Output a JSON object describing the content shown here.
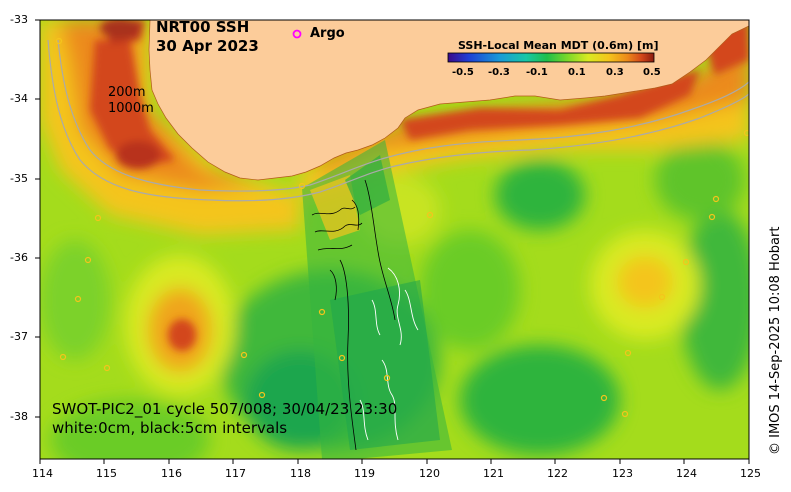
{
  "title": {
    "product": "NRT00 SSH",
    "date": "30 Apr 2023"
  },
  "legend": {
    "argo_symbol": "o",
    "argo_label": "Argo"
  },
  "colorbar": {
    "title": "SSH-Local Mean MDT (0.6m) [m]",
    "ticks": [
      "-0.5",
      "-0.3",
      "-0.1",
      "0.1",
      "0.3",
      "0.5"
    ],
    "colors": [
      "#3a0a8a",
      "#1f3fd6",
      "#1a9ad8",
      "#18c7a6",
      "#1fbf4a",
      "#7bd82a",
      "#d9ea22",
      "#f4c51c",
      "#ec8a1a",
      "#d3461a",
      "#8a1c10"
    ]
  },
  "depth_contours": {
    "label_200": "200m",
    "label_1000": "1000m"
  },
  "axes": {
    "x_ticks": [
      "114",
      "115",
      "116",
      "117",
      "118",
      "119",
      "120",
      "121",
      "122",
      "123",
      "124",
      "125"
    ],
    "y_ticks": [
      "-33",
      "-34",
      "-35",
      "-36",
      "-37",
      "-38"
    ]
  },
  "swot": {
    "line1": "SWOT-PIC2_01 cycle 507/008; 30/04/23 23:30",
    "line2": "white:0cm, black:5cm intervals"
  },
  "credit": "© IMOS 14-Sep-2025 10:08 Hobart",
  "colors": {
    "land": "#fccc9a",
    "background_field": "#a4dc1c",
    "high_anomaly": "#f08a18",
    "low_anomaly": "#1ea64e"
  }
}
